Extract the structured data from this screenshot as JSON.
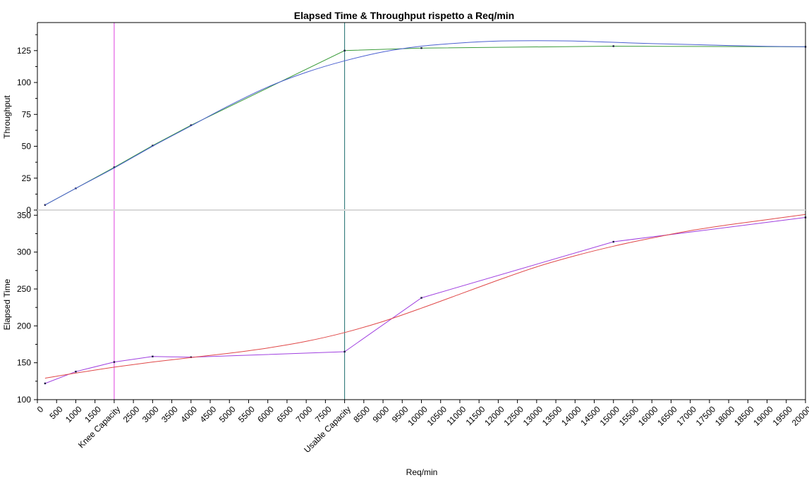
{
  "chart_data": {
    "title": "Elapsed Time & Throughput rispetto a Req/min",
    "xlabel": "Req/min",
    "xlim": [
      0,
      20000
    ],
    "x_ticks": [
      {
        "value": 0,
        "label": "0"
      },
      {
        "value": 500,
        "label": "500"
      },
      {
        "value": 1000,
        "label": "1000"
      },
      {
        "value": 1500,
        "label": "1500"
      },
      {
        "value": 2000,
        "label": "Knee Capacity"
      },
      {
        "value": 2500,
        "label": "2500"
      },
      {
        "value": 3000,
        "label": "3000"
      },
      {
        "value": 3500,
        "label": "3500"
      },
      {
        "value": 4000,
        "label": "4000"
      },
      {
        "value": 4500,
        "label": "4500"
      },
      {
        "value": 5000,
        "label": "5000"
      },
      {
        "value": 5500,
        "label": "5500"
      },
      {
        "value": 6000,
        "label": "6000"
      },
      {
        "value": 6500,
        "label": "6500"
      },
      {
        "value": 7000,
        "label": "7000"
      },
      {
        "value": 7500,
        "label": "7500"
      },
      {
        "value": 8000,
        "label": "Usable Capacity"
      },
      {
        "value": 8500,
        "label": "8500"
      },
      {
        "value": 9000,
        "label": "9000"
      },
      {
        "value": 9500,
        "label": "9500"
      },
      {
        "value": 10000,
        "label": "10000"
      },
      {
        "value": 10500,
        "label": "10500"
      },
      {
        "value": 11000,
        "label": "11000"
      },
      {
        "value": 11500,
        "label": "11500"
      },
      {
        "value": 12000,
        "label": "12000"
      },
      {
        "value": 12500,
        "label": "12500"
      },
      {
        "value": 13000,
        "label": "13000"
      },
      {
        "value": 13500,
        "label": "13500"
      },
      {
        "value": 14000,
        "label": "14000"
      },
      {
        "value": 14500,
        "label": "14500"
      },
      {
        "value": 15000,
        "label": "15000"
      },
      {
        "value": 15500,
        "label": "15500"
      },
      {
        "value": 16000,
        "label": "16000"
      },
      {
        "value": 16500,
        "label": "16500"
      },
      {
        "value": 17000,
        "label": "17000"
      },
      {
        "value": 17500,
        "label": "17500"
      },
      {
        "value": 18000,
        "label": "18000"
      },
      {
        "value": 18500,
        "label": "18500"
      },
      {
        "value": 19000,
        "label": "19000"
      },
      {
        "value": 19500,
        "label": "19500"
      },
      {
        "value": 20000,
        "label": "20000"
      }
    ],
    "vertical_lines": [
      {
        "x": 2000,
        "color": "#e040e0"
      },
      {
        "x": 8000,
        "color": "#1f6f6f"
      }
    ],
    "panels": [
      {
        "type": "line",
        "ylabel": "Throughput",
        "ylim": [
          0,
          147
        ],
        "y_ticks": [
          0,
          25,
          50,
          75,
          100,
          125
        ],
        "series": [
          {
            "color": "#3b9c3b",
            "markers": true,
            "x": [
              200,
              1000,
              2000,
              3000,
              4000,
              8000,
              10000,
              15000,
              20000
            ],
            "y": [
              4,
              17,
              33.5,
              50.5,
              66.5,
              125,
              127,
              128.5,
              128
            ]
          },
          {
            "color": "#4a5fd0",
            "markers": false,
            "smooth": true,
            "x": [
              200,
              1000,
              2000,
              3000,
              4000,
              5000,
              6000,
              7000,
              8000,
              9000,
              10000,
              11000,
              12000,
              13000,
              14000,
              15000,
              16000,
              17000,
              18000,
              19000,
              20000
            ],
            "y": [
              4,
              17,
              33,
              50,
              66,
              82,
              96.5,
              108,
              117,
              124,
              128.5,
              131,
              132.5,
              132.8,
              132.5,
              131.5,
              130.5,
              129.8,
              129,
              128.4,
              128
            ]
          }
        ]
      },
      {
        "type": "line",
        "ylabel": "Elapsed Time",
        "ylim": [
          100,
          357
        ],
        "y_ticks": [
          100,
          150,
          200,
          250,
          300,
          350
        ],
        "series": [
          {
            "color": "#a040e0",
            "markers": true,
            "x": [
              200,
              1000,
              2000,
              3000,
              4000,
              8000,
              10000,
              15000,
              20000
            ],
            "y": [
              122,
              138,
              151,
              158.5,
              157.5,
              165,
              238,
              314,
              347
            ]
          },
          {
            "color": "#e04848",
            "markers": false,
            "smooth": true,
            "x": [
              200,
              1000,
              2000,
              3000,
              4000,
              5000,
              6000,
              7000,
              8000,
              9000,
              10000,
              11000,
              12000,
              13000,
              14000,
              15000,
              16000,
              17000,
              18000,
              19000,
              20000
            ],
            "y": [
              129,
              136,
              144,
              151,
              157,
              163,
              170,
              179,
              191,
              206,
              224,
              243,
              262,
              280,
              295,
              308,
              319,
              329,
              337,
              344,
              351
            ]
          }
        ]
      }
    ]
  }
}
